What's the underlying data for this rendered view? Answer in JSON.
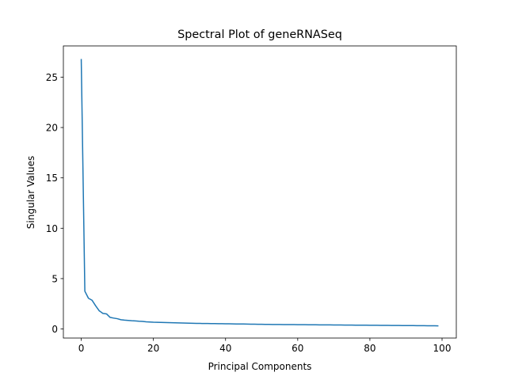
{
  "chart_data": {
    "type": "line",
    "title": "Spectral Plot of geneRNASeq",
    "xlabel": "Principal Components",
    "ylabel": "Singular Values",
    "xlim": [
      -4.95,
      103.95
    ],
    "ylim": [
      -0.9,
      28.1
    ],
    "xticks": [
      0,
      20,
      40,
      60,
      80,
      100
    ],
    "yticks": [
      0,
      5,
      10,
      15,
      20,
      25
    ],
    "grid": false,
    "series": [
      {
        "color": "#1f77b4",
        "x": [
          0,
          1,
          2,
          3,
          4,
          5,
          6,
          7,
          8,
          9,
          10,
          11,
          12,
          13,
          14,
          15,
          16,
          17,
          18,
          19,
          20,
          21,
          22,
          23,
          24,
          25,
          26,
          27,
          28,
          29,
          30,
          31,
          32,
          33,
          34,
          35,
          36,
          37,
          38,
          39,
          40,
          41,
          42,
          43,
          44,
          45,
          46,
          47,
          48,
          49,
          50,
          51,
          52,
          53,
          54,
          55,
          56,
          57,
          58,
          59,
          60,
          61,
          62,
          63,
          64,
          65,
          66,
          67,
          68,
          69,
          70,
          71,
          72,
          73,
          74,
          75,
          76,
          77,
          78,
          79,
          80,
          81,
          82,
          83,
          84,
          85,
          86,
          87,
          88,
          89,
          90,
          91,
          92,
          93,
          94,
          95,
          96,
          97,
          98,
          99
        ],
        "y": [
          26.8,
          3.75,
          3.05,
          2.85,
          2.3,
          1.8,
          1.55,
          1.5,
          1.15,
          1.08,
          1.02,
          0.92,
          0.88,
          0.85,
          0.82,
          0.8,
          0.77,
          0.75,
          0.71,
          0.69,
          0.67,
          0.66,
          0.65,
          0.64,
          0.63,
          0.62,
          0.61,
          0.6,
          0.59,
          0.58,
          0.57,
          0.56,
          0.555,
          0.55,
          0.545,
          0.54,
          0.535,
          0.53,
          0.525,
          0.52,
          0.515,
          0.51,
          0.505,
          0.5,
          0.495,
          0.49,
          0.485,
          0.48,
          0.475,
          0.47,
          0.465,
          0.46,
          0.455,
          0.45,
          0.447,
          0.444,
          0.441,
          0.438,
          0.435,
          0.432,
          0.429,
          0.426,
          0.423,
          0.42,
          0.417,
          0.414,
          0.411,
          0.408,
          0.405,
          0.402,
          0.399,
          0.396,
          0.393,
          0.39,
          0.387,
          0.384,
          0.381,
          0.378,
          0.375,
          0.372,
          0.369,
          0.366,
          0.363,
          0.36,
          0.357,
          0.354,
          0.351,
          0.348,
          0.345,
          0.342,
          0.339,
          0.336,
          0.333,
          0.33,
          0.327,
          0.324,
          0.321,
          0.318,
          0.315,
          0.312
        ]
      }
    ]
  }
}
